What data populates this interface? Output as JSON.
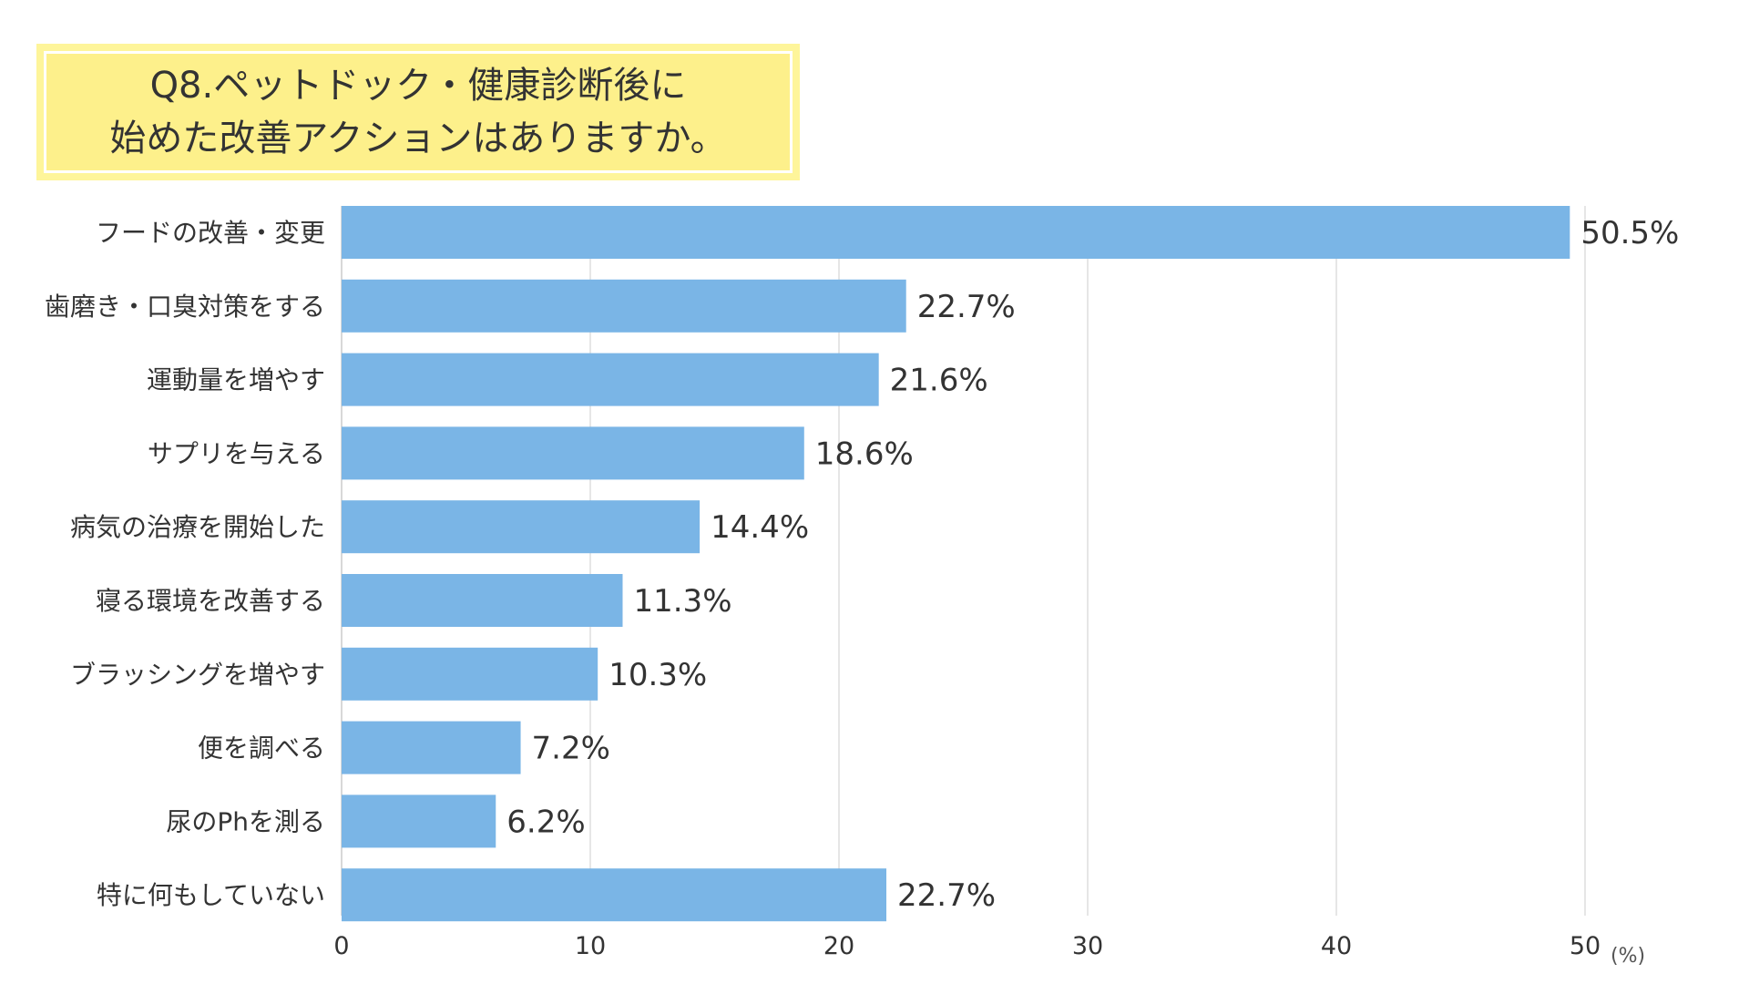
{
  "chart_data": {
    "type": "bar",
    "orientation": "horizontal",
    "title_lines": [
      "Q8.ペットドック・健康診断後に",
      "始めた改善アクションはありますか。"
    ],
    "categories": [
      "フードの改善・変更",
      "歯磨き・口臭対策をする",
      "運動量を増やす",
      "サプリを与える",
      "病気の治療を開始した",
      "寝る環境を改善する",
      "ブラッシングを増やす",
      "便を調べる",
      "尿のPhを測る",
      "特に何もしていない"
    ],
    "values": [
      50.5,
      22.7,
      21.6,
      18.6,
      14.4,
      11.3,
      10.3,
      7.2,
      6.2,
      22.7
    ],
    "data_labels": [
      "50.5%",
      "22.7%",
      "21.6%",
      "18.6%",
      "14.4%",
      "11.3%",
      "10.3%",
      "7.2%",
      "6.2%",
      "22.7%"
    ],
    "x_ticks": [
      "0",
      "10",
      "20",
      "30",
      "40",
      "50"
    ],
    "x_unit": "(%)",
    "xlim": [
      0,
      50
    ],
    "grid": "vertical",
    "bar_color": "#7ab5e6",
    "grid_color": "#dddddd"
  }
}
